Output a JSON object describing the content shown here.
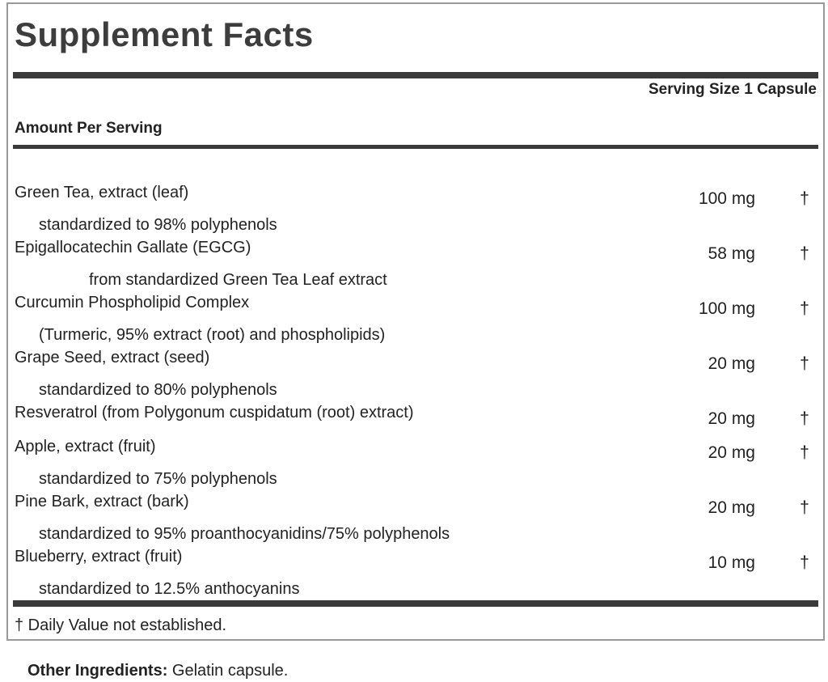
{
  "panel": {
    "title": "Supplement Facts",
    "serving_size": "Serving Size 1 Capsule",
    "amount_header": "Amount Per Serving",
    "footnote": "† Daily Value not established."
  },
  "ingredients": [
    {
      "name": "Green Tea, extract (leaf)",
      "amount": "100 mg",
      "dv": "†",
      "sub": "standardized to 98% polyphenols",
      "sub_indent": 1
    },
    {
      "name": "Epigallocatechin Gallate (EGCG)",
      "amount": "58 mg",
      "dv": "†",
      "sub": "from standardized Green Tea Leaf extract",
      "sub_indent": 2
    },
    {
      "name": "Curcumin Phospholipid Complex",
      "amount": "100 mg",
      "dv": "†",
      "sub": "(Turmeric, 95% extract (root) and phospholipids)",
      "sub_indent": 1
    },
    {
      "name": "Grape Seed, extract (seed)",
      "amount": "20 mg",
      "dv": "†",
      "sub": "standardized to 80% polyphenols",
      "sub_indent": 1
    },
    {
      "name": "Resveratrol (from Polygonum cuspidatum (root) extract)",
      "amount": "20 mg",
      "dv": "†",
      "sub": null
    },
    {
      "name": "Apple, extract (fruit)",
      "amount": "20 mg",
      "dv": "†",
      "sub": "standardized to 75% polyphenols",
      "sub_indent": 1
    },
    {
      "name": "Pine Bark, extract (bark)",
      "amount": "20 mg",
      "dv": "†",
      "sub": "standardized to 95% proanthocyanidins/75% polyphenols",
      "sub_indent": 1
    },
    {
      "name": "Blueberry, extract (fruit)",
      "amount": "10 mg",
      "dv": "†",
      "sub": "standardized to 12.5% anthocyanins",
      "sub_indent": 1
    }
  ],
  "other_ingredients": {
    "label": "Other Ingredients:",
    "value": "Gelatin capsule."
  },
  "colors": {
    "text": "#222222",
    "title": "#3d3d3d",
    "bar": "#3a3a3a",
    "border": "#999999"
  }
}
